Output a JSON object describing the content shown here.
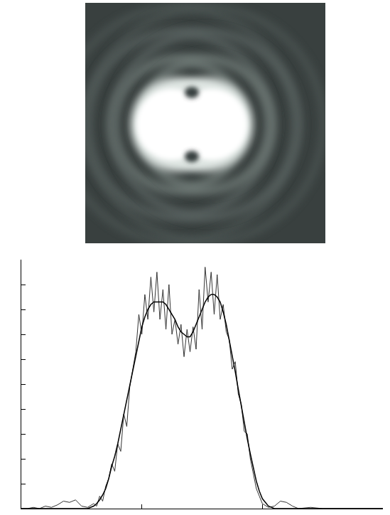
{
  "chart_data": {
    "type": "line",
    "x": [
      0,
      0.05,
      0.1,
      0.15,
      0.2,
      0.25,
      0.3,
      0.35,
      0.4,
      0.45,
      0.5,
      0.55,
      0.6,
      0.625,
      0.65,
      0.675,
      0.7,
      0.725,
      0.75,
      0.775,
      0.8,
      0.825,
      0.85,
      0.875,
      0.9,
      0.925,
      0.95,
      0.975,
      1.0,
      1.025,
      1.05,
      1.075,
      1.1,
      1.125,
      1.15,
      1.175,
      1.2,
      1.225,
      1.25,
      1.275,
      1.3,
      1.325,
      1.35,
      1.375,
      1.4,
      1.425,
      1.45,
      1.475,
      1.5,
      1.525,
      1.55,
      1.575,
      1.6,
      1.625,
      1.65,
      1.675,
      1.7,
      1.725,
      1.75,
      1.775,
      1.8,
      1.825,
      1.85,
      1.875,
      1.9,
      1.925,
      1.95,
      1.975,
      2.0,
      2.05,
      2.1,
      2.15,
      2.2,
      2.25,
      2.3,
      2.4,
      2.5,
      2.6,
      2.7,
      2.8,
      2.9,
      3.0
    ],
    "series": [
      {
        "color": "#333333",
        "line_style": "solid",
        "values": [
          0,
          0,
          0.05,
          0,
          0.1,
          0.05,
          0.15,
          0.3,
          0.25,
          0.35,
          0.1,
          0.05,
          0.2,
          0.1,
          0.5,
          0.3,
          0.9,
          1.2,
          1.8,
          1.5,
          2.6,
          2.3,
          3.8,
          3.3,
          4.9,
          5.6,
          6.3,
          7.8,
          7.0,
          8.6,
          7.6,
          9.3,
          7.9,
          9.5,
          7.6,
          8.8,
          7.2,
          9.0,
          7.0,
          7.6,
          6.6,
          7.4,
          6.1,
          7.2,
          6.3,
          7.3,
          6.4,
          8.8,
          7.2,
          9.7,
          8.3,
          9.5,
          7.8,
          9.4,
          7.6,
          8.2,
          7.1,
          6.8,
          5.6,
          5.9,
          4.6,
          4.2,
          3.1,
          3.0,
          2.0,
          1.4,
          0.8,
          0.5,
          0.2,
          0.05,
          0.1,
          0.3,
          0.25,
          0.1,
          0,
          0.05,
          0,
          0,
          0,
          0,
          0,
          0
        ]
      },
      {
        "color": "#000000",
        "line_style": "solid",
        "values": [
          0,
          0,
          0,
          0,
          0,
          0,
          0,
          0,
          0,
          0,
          0,
          0,
          0.1,
          0.2,
          0.35,
          0.55,
          0.8,
          1.2,
          1.7,
          2.1,
          2.6,
          3.2,
          3.8,
          4.4,
          5.0,
          5.6,
          6.2,
          6.8,
          7.3,
          7.7,
          8.0,
          8.2,
          8.3,
          8.3,
          8.3,
          8.3,
          8.2,
          8.0,
          7.8,
          7.6,
          7.3,
          7.1,
          7.0,
          6.9,
          6.9,
          7.1,
          7.4,
          7.7,
          8.0,
          8.3,
          8.5,
          8.6,
          8.6,
          8.5,
          8.3,
          7.9,
          7.4,
          6.8,
          6.1,
          5.5,
          4.8,
          4.1,
          3.5,
          2.8,
          2.2,
          1.6,
          1.1,
          0.7,
          0.4,
          0.1,
          0,
          0,
          0,
          0,
          0,
          0,
          0,
          0,
          0,
          0,
          0,
          0
        ]
      }
    ],
    "xlim": [
      0,
      3
    ],
    "xticks": [
      0,
      1,
      2,
      3
    ],
    "ylim": [
      0,
      10
    ],
    "yticks": [
      0,
      1,
      2,
      3,
      4,
      5,
      6,
      7,
      8,
      9,
      10
    ],
    "grid": false,
    "tick_labels": false
  }
}
